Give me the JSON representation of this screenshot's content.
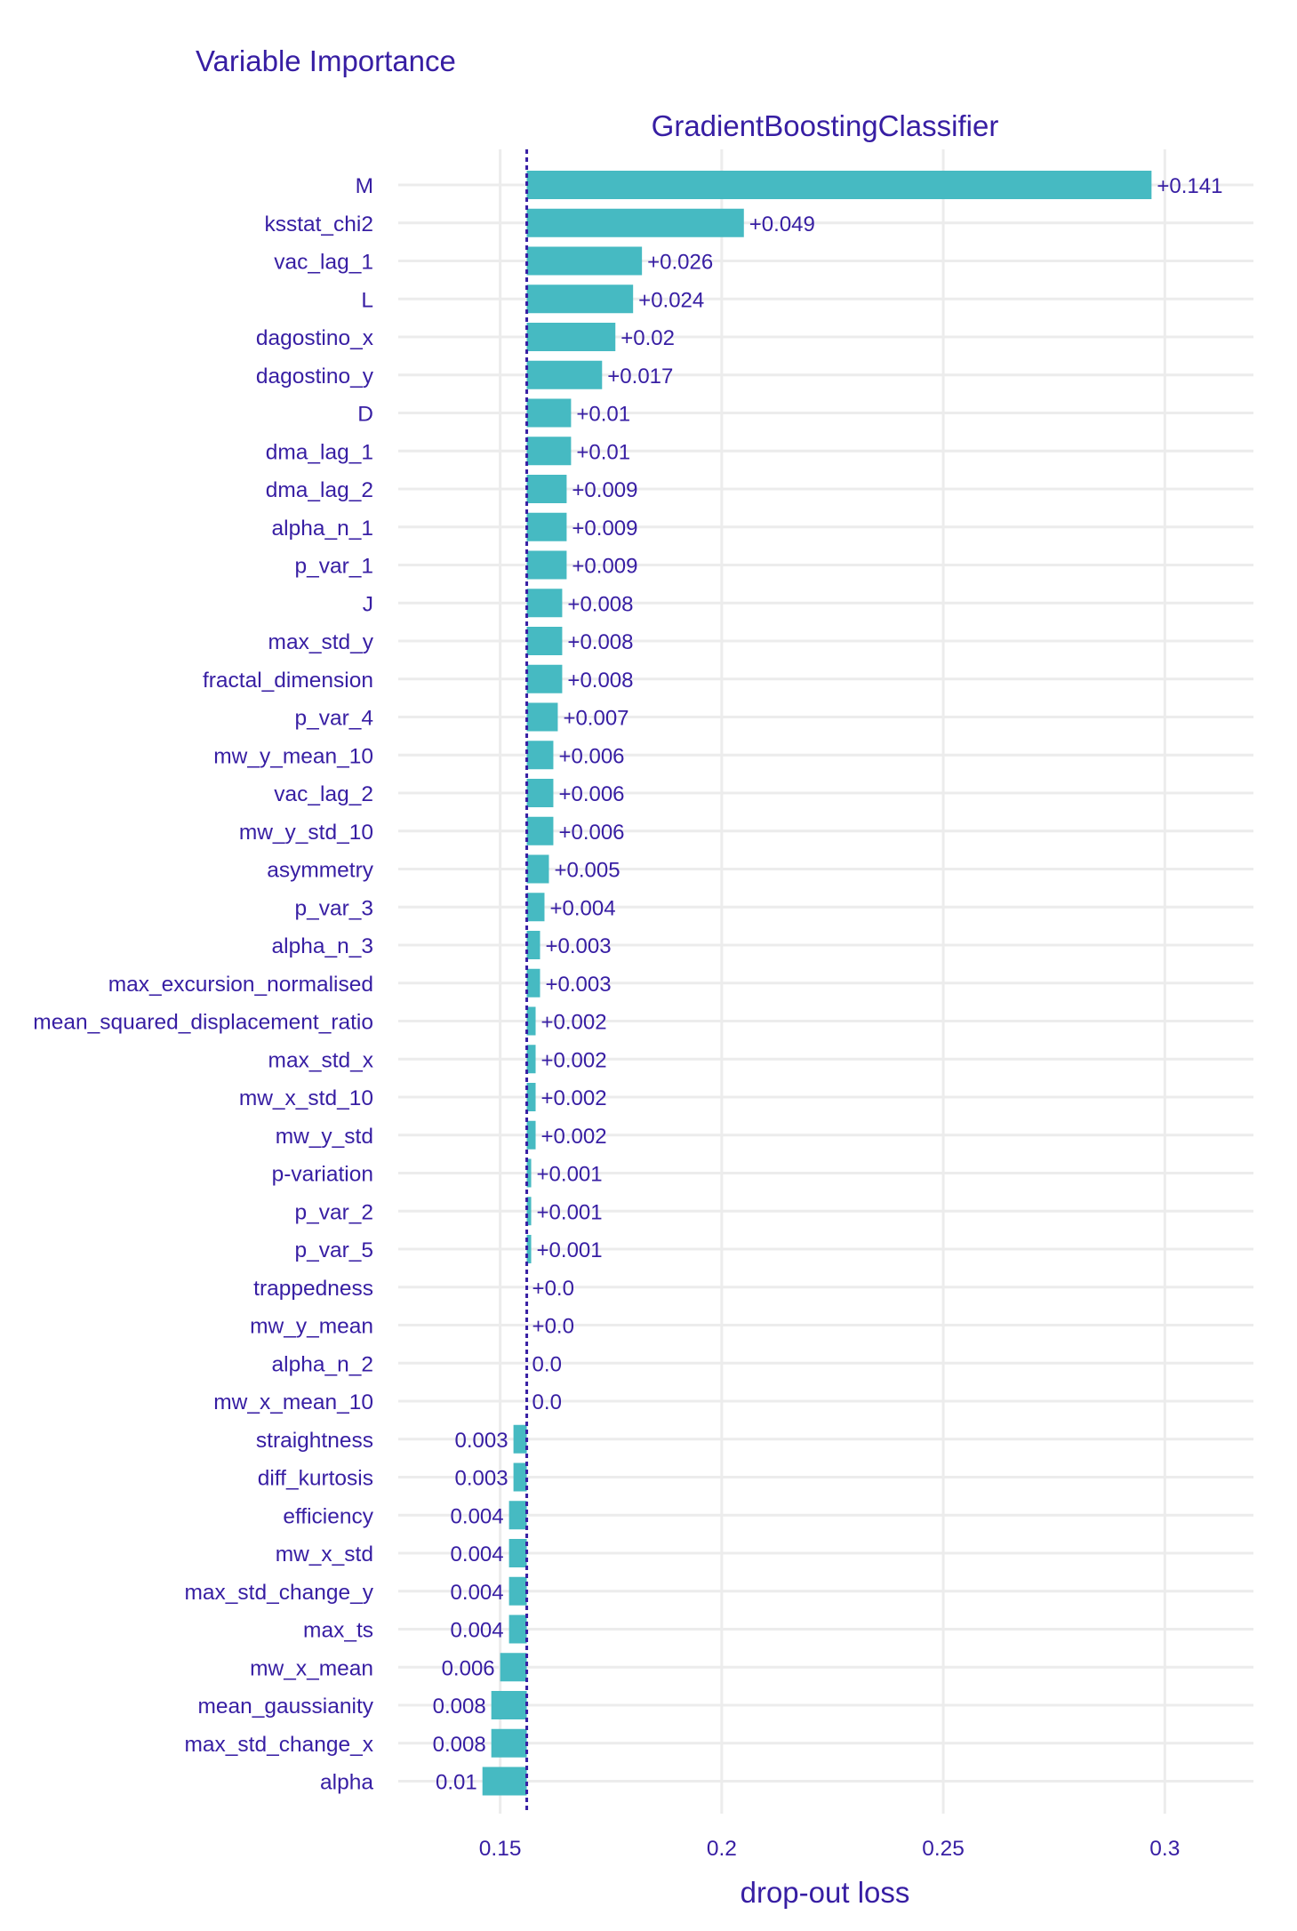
{
  "chart_data": {
    "type": "bar",
    "orientation": "horizontal",
    "title": "Variable Importance",
    "subtitle": "GradientBoostingClassifier",
    "xlabel": "drop-out loss",
    "xlim": [
      0.127,
      0.32
    ],
    "x_ticks": [
      0.15,
      0.2,
      0.25,
      0.3
    ],
    "x_tick_labels": [
      "0.15",
      "0.2",
      "0.25",
      "0.3"
    ],
    "baseline": 0.156,
    "grid": true,
    "colors": {
      "bar": "#46bac2",
      "text": "#371ea3",
      "baseline": "#371ea3",
      "grid": "#ececec"
    },
    "categories": [
      "M",
      "ksstat_chi2",
      "vac_lag_1",
      "L",
      "dagostino_x",
      "dagostino_y",
      "D",
      "dma_lag_1",
      "dma_lag_2",
      "alpha_n_1",
      "p_var_1",
      "J",
      "max_std_y",
      "fractal_dimension",
      "p_var_4",
      "mw_y_mean_10",
      "vac_lag_2",
      "mw_y_std_10",
      "asymmetry",
      "p_var_3",
      "alpha_n_3",
      "max_excursion_normalised",
      "mean_squared_displacement_ratio",
      "max_std_x",
      "mw_x_std_10",
      "mw_y_std",
      "p-variation",
      "p_var_2",
      "p_var_5",
      "trappedness",
      "mw_y_mean",
      "alpha_n_2",
      "mw_x_mean_10",
      "straightness",
      "diff_kurtosis",
      "efficiency",
      "mw_x_std",
      "max_std_change_y",
      "max_ts",
      "mw_x_mean",
      "mean_gaussianity",
      "max_std_change_x",
      "alpha"
    ],
    "values": [
      0.297,
      0.205,
      0.182,
      0.18,
      0.176,
      0.173,
      0.166,
      0.166,
      0.165,
      0.165,
      0.165,
      0.164,
      0.164,
      0.164,
      0.163,
      0.162,
      0.162,
      0.162,
      0.161,
      0.16,
      0.159,
      0.159,
      0.158,
      0.158,
      0.158,
      0.158,
      0.157,
      0.157,
      0.157,
      0.156,
      0.156,
      0.156,
      0.156,
      0.153,
      0.153,
      0.152,
      0.152,
      0.152,
      0.152,
      0.15,
      0.148,
      0.148,
      0.146
    ],
    "value_labels": [
      "+0.141",
      "+0.049",
      "+0.026",
      "+0.024",
      "+0.02",
      "+0.017",
      "+0.01",
      "+0.01",
      "+0.009",
      "+0.009",
      "+0.009",
      "+0.008",
      "+0.008",
      "+0.008",
      "+0.007",
      "+0.006",
      "+0.006",
      "+0.006",
      "+0.005",
      "+0.004",
      "+0.003",
      "+0.003",
      "+0.002",
      "+0.002",
      "+0.002",
      "+0.002",
      "+0.001",
      "+0.001",
      "+0.001",
      "+0.0",
      "+0.0",
      "0.0",
      "0.0",
      "0.003",
      "0.003",
      "0.004",
      "0.004",
      "0.004",
      "0.004",
      "0.006",
      "0.008",
      "0.008",
      "0.01"
    ]
  }
}
